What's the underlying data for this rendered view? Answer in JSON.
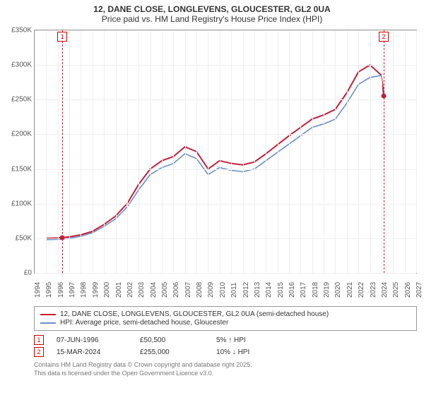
{
  "title_line1": "12, DANE CLOSE, LONGLEVENS, GLOUCESTER, GL2 0UA",
  "title_line2": "Price paid vs. HM Land Registry's House Price Index (HPI)",
  "chart": {
    "type": "line",
    "background_color": "#ffffff",
    "grid_color": "#eeeeee",
    "border_color": "#999999",
    "x_years": [
      1994,
      1995,
      1996,
      1997,
      1998,
      1999,
      2000,
      2001,
      2002,
      2003,
      2004,
      2005,
      2006,
      2007,
      2008,
      2009,
      2010,
      2011,
      2012,
      2013,
      2014,
      2015,
      2016,
      2017,
      2018,
      2019,
      2020,
      2021,
      2022,
      2023,
      2024,
      2025,
      2026,
      2027
    ],
    "xlim": [
      1994,
      2027
    ],
    "y_ticks": [
      0,
      50000,
      100000,
      150000,
      200000,
      250000,
      300000,
      350000
    ],
    "y_tick_labels": [
      "£0",
      "£50K",
      "£100K",
      "£150K",
      "£200K",
      "£250K",
      "£300K",
      "£350K"
    ],
    "ylim": [
      0,
      350000
    ],
    "label_fontsize": 10,
    "series": [
      {
        "name": "red",
        "color": "#c41e3a",
        "width": 2,
        "points": [
          [
            1995,
            50000
          ],
          [
            1996,
            50500
          ],
          [
            1997,
            52000
          ],
          [
            1998,
            55000
          ],
          [
            1999,
            60000
          ],
          [
            2000,
            70000
          ],
          [
            2001,
            82000
          ],
          [
            2002,
            100000
          ],
          [
            2003,
            128000
          ],
          [
            2004,
            150000
          ],
          [
            2005,
            162000
          ],
          [
            2006,
            168000
          ],
          [
            2007,
            182000
          ],
          [
            2008,
            175000
          ],
          [
            2009,
            150000
          ],
          [
            2010,
            162000
          ],
          [
            2011,
            158000
          ],
          [
            2012,
            156000
          ],
          [
            2013,
            160000
          ],
          [
            2014,
            172000
          ],
          [
            2015,
            185000
          ],
          [
            2016,
            198000
          ],
          [
            2017,
            210000
          ],
          [
            2018,
            222000
          ],
          [
            2019,
            228000
          ],
          [
            2020,
            236000
          ],
          [
            2021,
            260000
          ],
          [
            2022,
            290000
          ],
          [
            2023,
            300000
          ],
          [
            2024,
            285000
          ],
          [
            2024.2,
            255000
          ]
        ]
      },
      {
        "name": "blue",
        "color": "#6a8fc7",
        "width": 1.6,
        "points": [
          [
            1995,
            48000
          ],
          [
            1996,
            48500
          ],
          [
            1997,
            50000
          ],
          [
            1998,
            53000
          ],
          [
            1999,
            58000
          ],
          [
            2000,
            67000
          ],
          [
            2001,
            78000
          ],
          [
            2002,
            95000
          ],
          [
            2003,
            120000
          ],
          [
            2004,
            142000
          ],
          [
            2005,
            152000
          ],
          [
            2006,
            158000
          ],
          [
            2007,
            172000
          ],
          [
            2008,
            165000
          ],
          [
            2009,
            142000
          ],
          [
            2010,
            152000
          ],
          [
            2011,
            148000
          ],
          [
            2012,
            146000
          ],
          [
            2013,
            150000
          ],
          [
            2014,
            162000
          ],
          [
            2015,
            174000
          ],
          [
            2016,
            186000
          ],
          [
            2017,
            198000
          ],
          [
            2018,
            210000
          ],
          [
            2019,
            215000
          ],
          [
            2020,
            222000
          ],
          [
            2021,
            245000
          ],
          [
            2022,
            272000
          ],
          [
            2023,
            282000
          ],
          [
            2024,
            285000
          ]
        ]
      }
    ],
    "markers": [
      {
        "n": "1",
        "x": 1996.4,
        "y": 50500,
        "color": "#c41e3a"
      },
      {
        "n": "2",
        "x": 2024.2,
        "y": 255000,
        "color": "#c41e3a"
      }
    ]
  },
  "legend": {
    "items": [
      {
        "color": "#c41e3a",
        "label": "12, DANE CLOSE, LONGLEVENS, GLOUCESTER, GL2 0UA (semi-detached house)"
      },
      {
        "color": "#6a8fc7",
        "label": "HPI: Average price, semi-detached house, Gloucester"
      }
    ]
  },
  "datapoints": [
    {
      "n": "1",
      "date": "07-JUN-1996",
      "price": "£50,500",
      "pct": "5% ↑ HPI"
    },
    {
      "n": "2",
      "date": "15-MAR-2024",
      "price": "£255,000",
      "pct": "10% ↓ HPI"
    }
  ],
  "attribution_line1": "Contains HM Land Registry data © Crown copyright and database right 2025.",
  "attribution_line2": "This data is licensed under the Open Government Licence v3.0."
}
